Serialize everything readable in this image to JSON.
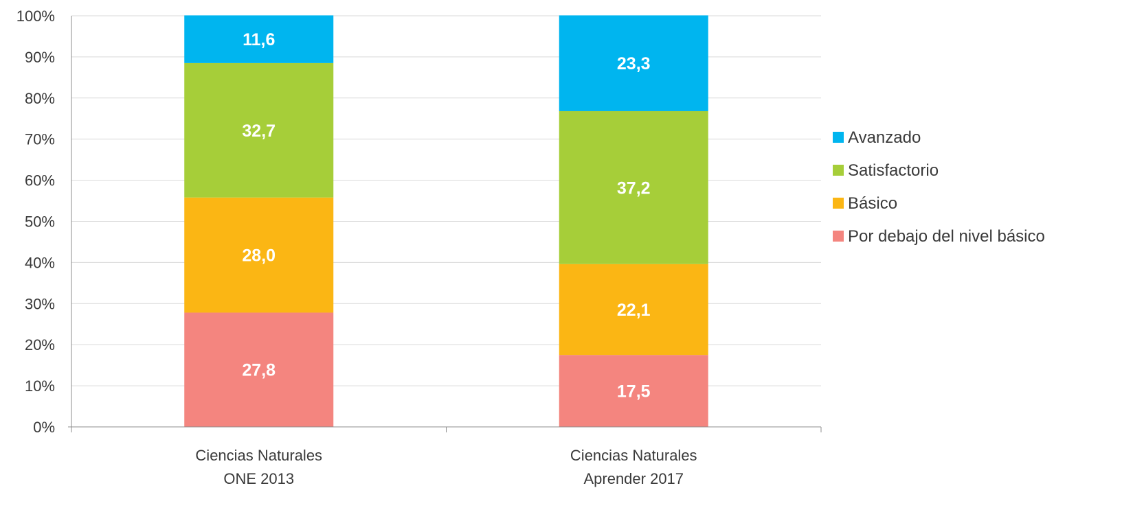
{
  "chart_data": {
    "type": "bar",
    "stacked": true,
    "categories": [
      [
        "Ciencias Naturales",
        "ONE 2013"
      ],
      [
        "Ciencias Naturales",
        "Aprender 2017"
      ]
    ],
    "series": [
      {
        "name": "Por debajo del nivel básico",
        "color": "#f4857f",
        "values": [
          27.8,
          17.5
        ],
        "labels": [
          "27,8",
          "17,5"
        ]
      },
      {
        "name": "Básico",
        "color": "#fbb614",
        "values": [
          28.0,
          22.1
        ],
        "labels": [
          "28,0",
          "22,1"
        ]
      },
      {
        "name": "Satisfactorio",
        "color": "#a6ce39",
        "values": [
          32.7,
          37.2
        ],
        "labels": [
          "32,7",
          "37,2"
        ]
      },
      {
        "name": "Avanzado",
        "color": "#00b5ef",
        "values": [
          11.6,
          23.3
        ],
        "labels": [
          "11,6",
          "23,3"
        ]
      }
    ],
    "ylim": [
      0,
      100
    ],
    "yticks": [
      "0%",
      "10%",
      "20%",
      "30%",
      "40%",
      "50%",
      "60%",
      "70%",
      "80%",
      "90%",
      "100%"
    ],
    "grid": true,
    "legend": {
      "position": "right",
      "order": [
        "Avanzado",
        "Satisfactorio",
        "Básico",
        "Por debajo del nivel básico"
      ]
    },
    "title": "",
    "xlabel": "",
    "ylabel": ""
  }
}
